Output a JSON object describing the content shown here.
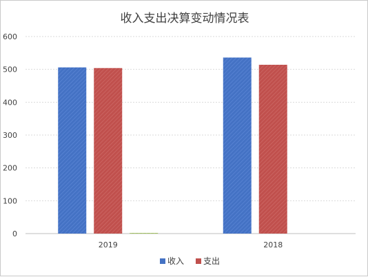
{
  "chart_data": {
    "type": "bar",
    "title": "收入支出决算变动情况表",
    "categories": [
      "2019",
      "2018"
    ],
    "series": [
      {
        "name": "收入",
        "color": "#4472C4",
        "values": [
          506,
          536
        ]
      },
      {
        "name": "支出",
        "color": "#C0504D",
        "values": [
          504,
          514
        ]
      },
      {
        "name": "",
        "color": "#9BBB59",
        "values": [
          2,
          null
        ]
      }
    ],
    "ylim": [
      0,
      600
    ],
    "yticks": [
      0,
      100,
      200,
      300,
      400,
      500,
      600
    ],
    "grid": true,
    "legend_position": "bottom"
  }
}
